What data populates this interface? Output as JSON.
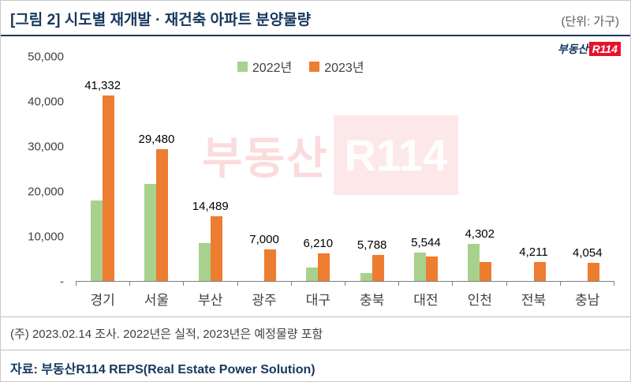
{
  "header": {
    "title": "[그림 2] 시도별 재개발 · 재건축 아파트 분양물량",
    "unit": "(단위: 가구)"
  },
  "logo": {
    "prefix": "부동산",
    "suffix": "R114"
  },
  "watermark": {
    "prefix": "부동산",
    "suffix": "R114"
  },
  "chart_data": {
    "type": "bar",
    "categories": [
      "경기",
      "서울",
      "부산",
      "광주",
      "대구",
      "충북",
      "대전",
      "인천",
      "전북",
      "충남"
    ],
    "series": [
      {
        "name": "2022년",
        "color": "#A9D18E",
        "values": [
          18000,
          21700,
          8500,
          0,
          3000,
          1800,
          6300,
          8300,
          0,
          0
        ]
      },
      {
        "name": "2023년",
        "color": "#ED7D31",
        "values": [
          41332,
          29480,
          14489,
          7000,
          6210,
          5788,
          5544,
          4302,
          4211,
          4054
        ]
      }
    ],
    "value_labels": [
      "41,332",
      "29,480",
      "14,489",
      "7,000",
      "6,210",
      "5,788",
      "5,544",
      "4,302",
      "4,211",
      "4,054"
    ],
    "title": "시도별 재개발 · 재건축 아파트 분양물량",
    "xlabel": "",
    "ylabel": "가구",
    "ylim": [
      0,
      50000
    ],
    "yticks": [
      "50,000",
      "40,000",
      "30,000",
      "20,000",
      "10,000",
      "-"
    ],
    "grid": false,
    "legend_position": "top-center"
  },
  "footer": {
    "note": "(주) 2023.02.14 조사. 2022년은 실적, 2023년은 예정물량 포함",
    "source": "자료: 부동산R114 REPS(Real Estate Power Solution)"
  }
}
